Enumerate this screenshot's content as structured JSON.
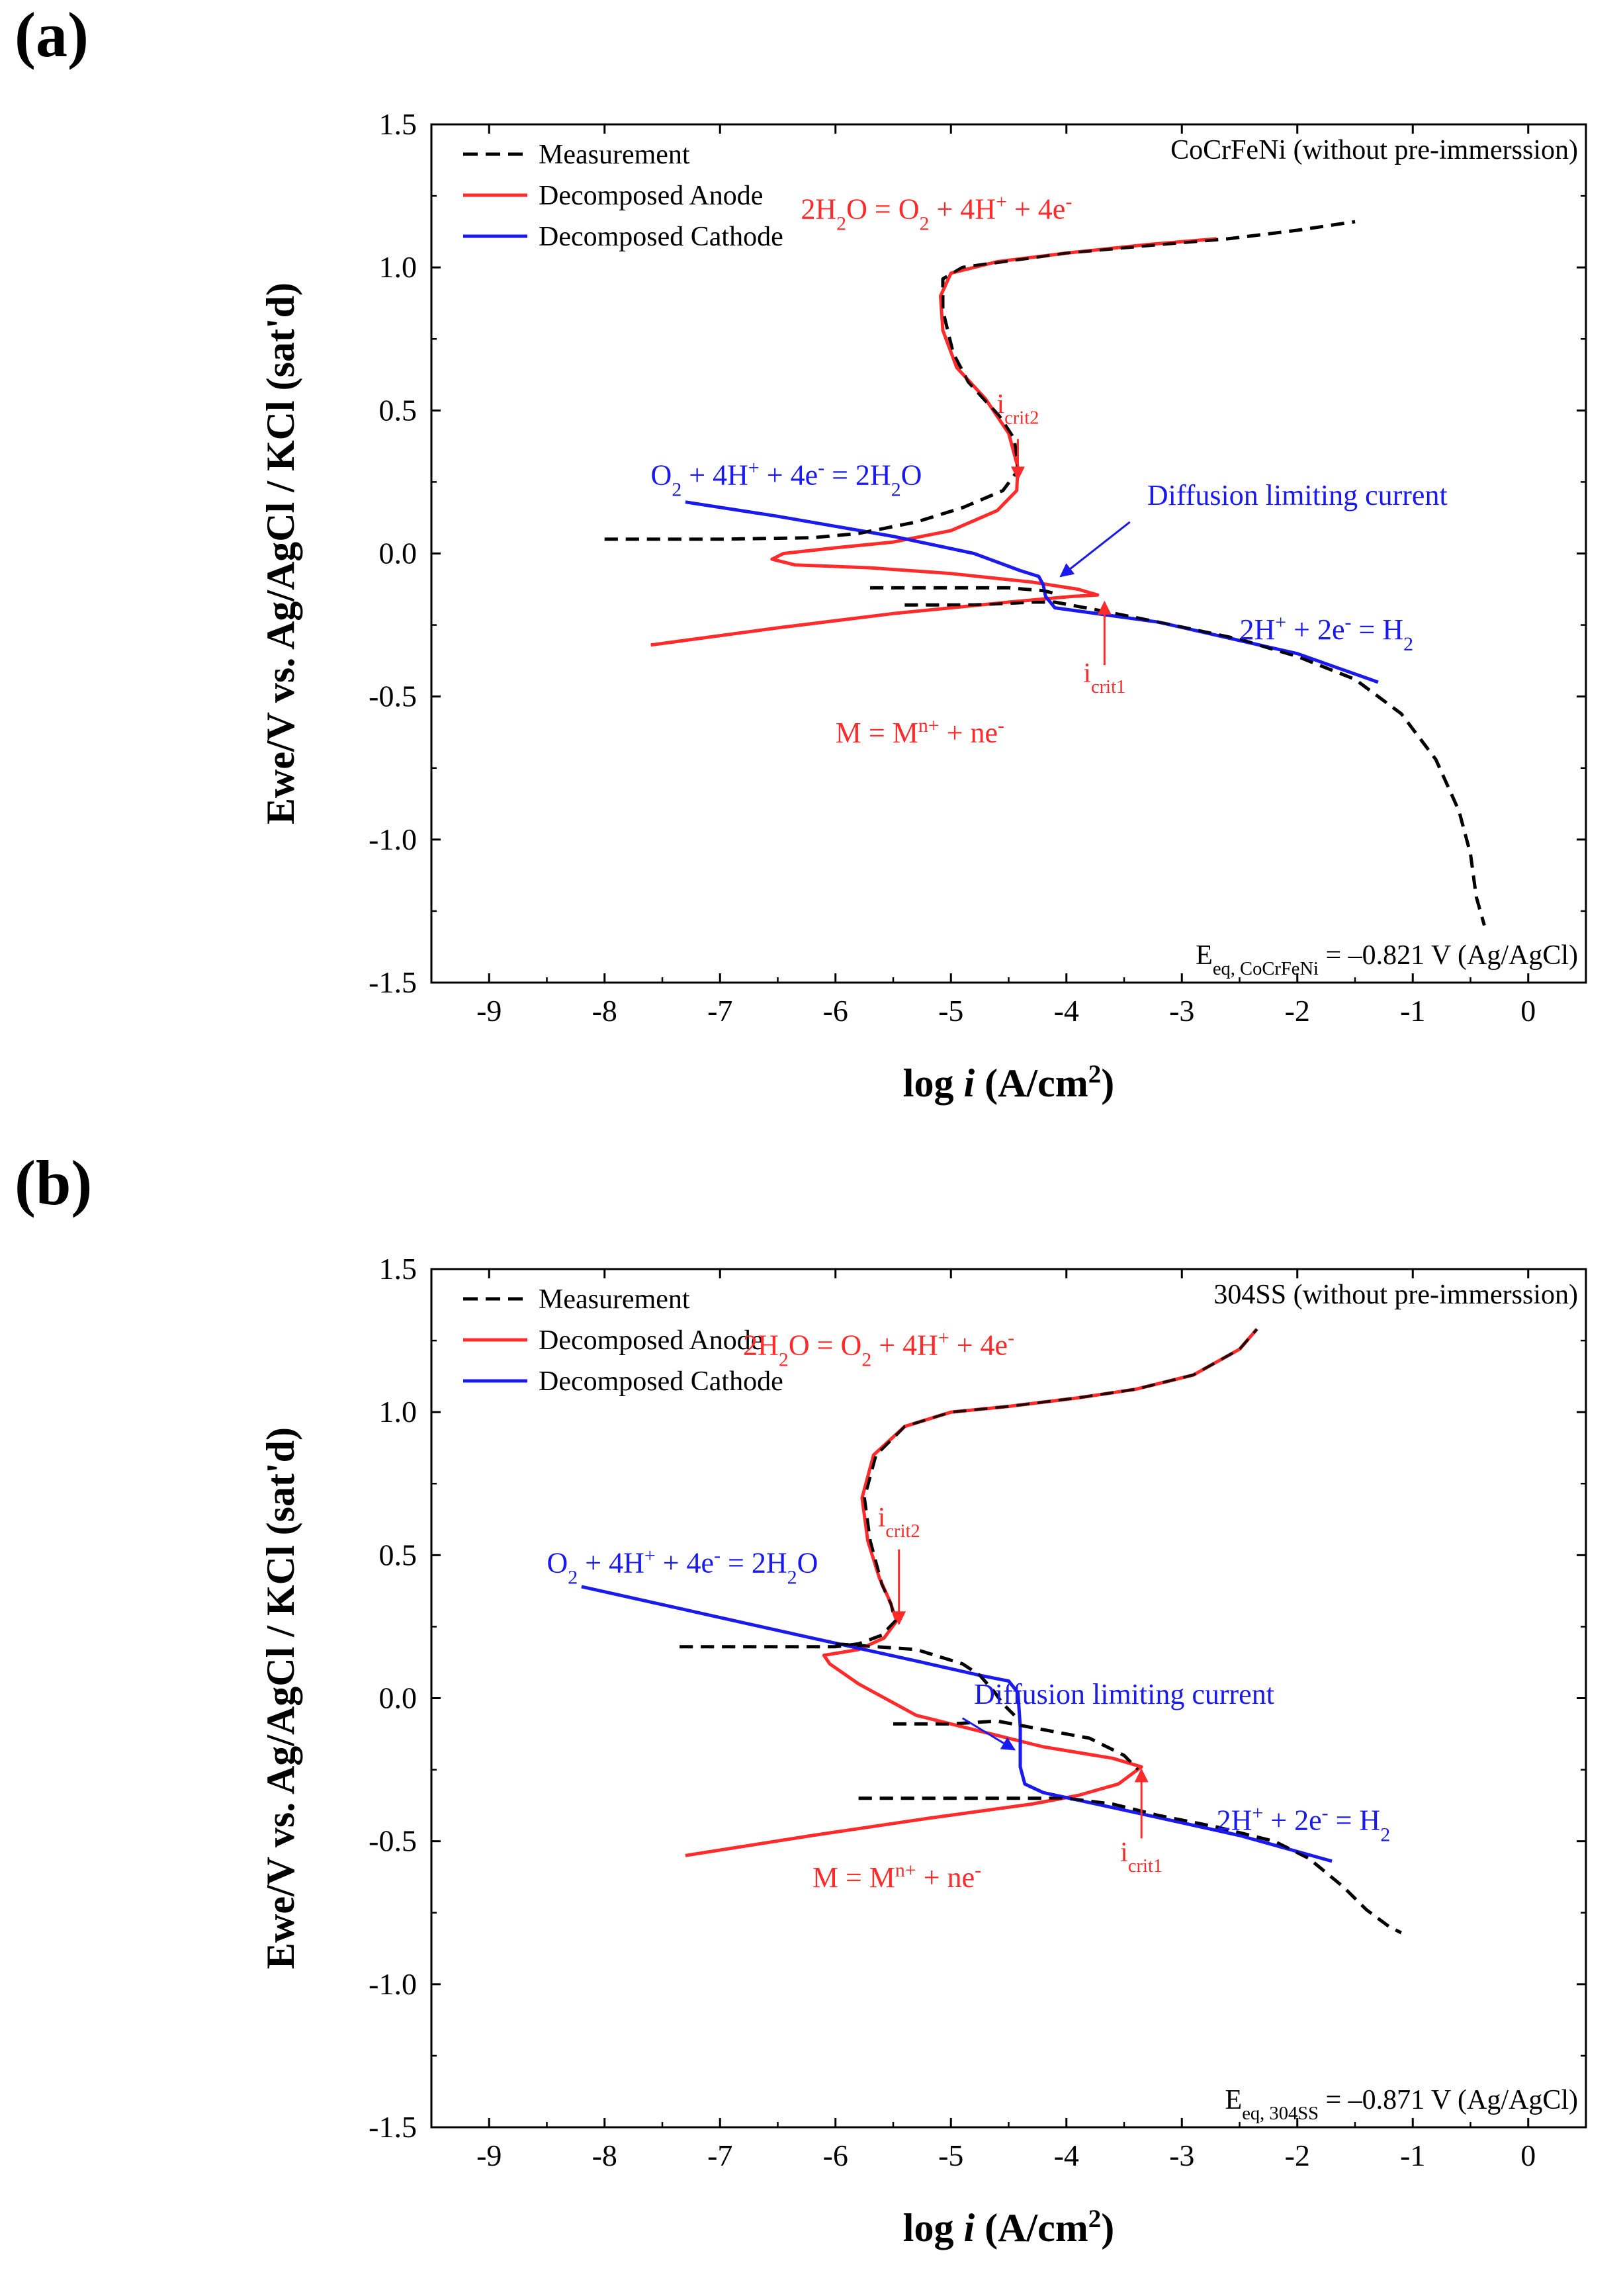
{
  "chart_data": [
    {
      "panel_label": "(a)",
      "type": "line",
      "title": "CoCrFeNi (without pre-immerssion)",
      "xlabel": "log i (A/cm2)",
      "ylabel": "Ewe/V vs. Ag/AgCl / KCl (sat'd)",
      "xlim": [
        -9.5,
        0.5
      ],
      "ylim": [
        -1.5,
        1.5
      ],
      "xticks": [
        -9,
        -8,
        -7,
        -6,
        -5,
        -4,
        -3,
        -2,
        -1,
        0
      ],
      "yticks": [
        -1.5,
        -1.0,
        -0.5,
        0.0,
        0.5,
        1.0,
        1.5
      ],
      "xtick_labels": [
        "-9",
        "-8",
        "-7",
        "-6",
        "-5",
        "-4",
        "-3",
        "-2",
        "-1",
        "0"
      ],
      "ytick_labels": [
        "-1.5",
        "-1.0",
        "-0.5",
        "0.0",
        "0.5",
        "1.0",
        "1.5"
      ],
      "legend": {
        "position": "top-left",
        "entries": [
          {
            "label": "Measurement",
            "color": "#000000",
            "style": "dashed"
          },
          {
            "label": "Decomposed Anode",
            "color": "#ff2a2a",
            "style": "solid"
          },
          {
            "label": "Decomposed Cathode",
            "color": "#1a1aee",
            "style": "solid"
          }
        ]
      },
      "annotations": {
        "oer": "2H2O = O2 + 4H+ + 4e-",
        "orr": "O2 + 4H+ + 4e- = 2H2O",
        "her": "2H+ + 2e- = H2",
        "metal": "M = Mn+ + ne-",
        "diffusion": "Diffusion limiting current",
        "icrit1": "icrit1",
        "icrit2": "icrit2",
        "eq": "Eeq, CoCrFeNi = –0.821 V (Ag/AgCl)"
      },
      "series": [
        {
          "name": "Measurement",
          "points": [
            [
              -8.0,
              0.05
            ],
            [
              -7.0,
              0.05
            ],
            [
              -6.2,
              0.055
            ],
            [
              -5.8,
              0.07
            ],
            [
              -5.3,
              0.11
            ],
            [
              -4.9,
              0.16
            ],
            [
              -4.55,
              0.22
            ],
            [
              -4.42,
              0.29
            ],
            [
              -4.45,
              0.4
            ],
            [
              -4.58,
              0.48
            ],
            [
              -4.85,
              0.6
            ],
            [
              -4.98,
              0.7
            ],
            [
              -5.07,
              0.85
            ],
            [
              -5.07,
              0.96
            ],
            [
              -4.9,
              1.0
            ],
            [
              -4.55,
              1.02
            ],
            [
              -4.0,
              1.05
            ],
            [
              -3.2,
              1.08
            ],
            [
              -2.6,
              1.1
            ],
            [
              -2.0,
              1.13
            ],
            [
              -1.5,
              1.16
            ]
          ]
        },
        {
          "name": "Measurement",
          "points": [
            [
              -5.7,
              -0.12
            ],
            [
              -5.0,
              -0.12
            ],
            [
              -4.5,
              -0.12
            ],
            [
              -4.2,
              -0.13
            ],
            [
              -4.1,
              -0.14
            ]
          ]
        },
        {
          "name": "Measurement",
          "points": [
            [
              -5.4,
              -0.18
            ],
            [
              -4.8,
              -0.18
            ],
            [
              -4.3,
              -0.17
            ],
            [
              -4.1,
              -0.17
            ],
            [
              -3.7,
              -0.2
            ],
            [
              -3.2,
              -0.24
            ],
            [
              -2.5,
              -0.3
            ],
            [
              -2.0,
              -0.36
            ],
            [
              -1.5,
              -0.44
            ],
            [
              -1.1,
              -0.56
            ],
            [
              -0.8,
              -0.72
            ],
            [
              -0.6,
              -0.9
            ],
            [
              -0.5,
              -1.05
            ],
            [
              -0.45,
              -1.2
            ],
            [
              -0.38,
              -1.3
            ]
          ]
        },
        {
          "name": "Decomposed Anode",
          "points": [
            [
              -7.6,
              -0.32
            ],
            [
              -6.5,
              -0.26
            ],
            [
              -5.5,
              -0.21
            ],
            [
              -4.5,
              -0.17
            ],
            [
              -3.95,
              -0.15
            ],
            [
              -3.73,
              -0.145
            ],
            [
              -3.9,
              -0.125
            ],
            [
              -4.3,
              -0.1
            ],
            [
              -5.0,
              -0.07
            ],
            [
              -5.7,
              -0.05
            ],
            [
              -6.35,
              -0.04
            ],
            [
              -6.55,
              -0.02
            ],
            [
              -6.45,
              0.0
            ],
            [
              -6.0,
              0.02
            ],
            [
              -5.5,
              0.04
            ],
            [
              -5.0,
              0.08
            ],
            [
              -4.6,
              0.15
            ],
            [
              -4.43,
              0.22
            ],
            [
              -4.42,
              0.3
            ],
            [
              -4.5,
              0.42
            ],
            [
              -4.7,
              0.54
            ],
            [
              -4.95,
              0.65
            ],
            [
              -5.07,
              0.78
            ],
            [
              -5.09,
              0.9
            ],
            [
              -5.0,
              0.98
            ],
            [
              -4.6,
              1.02
            ],
            [
              -4.0,
              1.05
            ],
            [
              -3.3,
              1.08
            ],
            [
              -2.7,
              1.1
            ]
          ]
        },
        {
          "name": "Decomposed Cathode",
          "points": [
            [
              -7.3,
              0.18
            ],
            [
              -6.5,
              0.13
            ],
            [
              -5.5,
              0.06
            ],
            [
              -4.8,
              -0.0
            ],
            [
              -4.4,
              -0.06
            ],
            [
              -4.24,
              -0.08
            ],
            [
              -4.2,
              -0.11
            ],
            [
              -4.18,
              -0.15
            ],
            [
              -4.1,
              -0.19
            ],
            [
              -3.2,
              -0.24
            ],
            [
              -2.0,
              -0.35
            ],
            [
              -1.3,
              -0.45
            ]
          ]
        }
      ]
    },
    {
      "panel_label": "(b)",
      "type": "line",
      "title": "304SS (without pre-immerssion)",
      "xlabel": "log i (A/cm2)",
      "ylabel": "Ewe/V vs. Ag/AgCl / KCl (sat'd)",
      "xlim": [
        -9.5,
        0.5
      ],
      "ylim": [
        -1.5,
        1.5
      ],
      "xticks": [
        -9,
        -8,
        -7,
        -6,
        -5,
        -4,
        -3,
        -2,
        -1,
        0
      ],
      "yticks": [
        -1.5,
        -1.0,
        -0.5,
        0.0,
        0.5,
        1.0,
        1.5
      ],
      "xtick_labels": [
        "-9",
        "-8",
        "-7",
        "-6",
        "-5",
        "-4",
        "-3",
        "-2",
        "-1",
        "0"
      ],
      "ytick_labels": [
        "-1.5",
        "-1.0",
        "-0.5",
        "0.0",
        "0.5",
        "1.0",
        "1.5"
      ],
      "legend": {
        "position": "top-left",
        "entries": [
          {
            "label": "Measurement",
            "color": "#000000",
            "style": "dashed"
          },
          {
            "label": "Decomposed Anode",
            "color": "#ff2a2a",
            "style": "solid"
          },
          {
            "label": "Decomposed Cathode",
            "color": "#1a1aee",
            "style": "solid"
          }
        ]
      },
      "annotations": {
        "oer": "2H2O = O2 + 4H+ + 4e-",
        "orr": "O2 + 4H+ + 4e- = 2H2O",
        "her": "2H+ + 2e- = H2",
        "metal": "M = Mn+ + ne-",
        "diffusion": "Diffusion limiting current",
        "icrit1": "icrit1",
        "icrit2": "icrit2",
        "eq": "Eeq, 304SS = –0.871 V (Ag/AgCl)"
      },
      "series": [
        {
          "name": "Measurement",
          "points": [
            [
              -7.35,
              0.18
            ],
            [
              -6.6,
              0.18
            ],
            [
              -6.0,
              0.18
            ],
            [
              -5.8,
              0.19
            ],
            [
              -5.6,
              0.22
            ],
            [
              -5.48,
              0.27
            ],
            [
              -5.52,
              0.33
            ],
            [
              -5.6,
              0.4
            ],
            [
              -5.7,
              0.55
            ],
            [
              -5.75,
              0.7
            ],
            [
              -5.65,
              0.85
            ],
            [
              -5.4,
              0.95
            ],
            [
              -5.0,
              1.0
            ],
            [
              -4.5,
              1.02
            ],
            [
              -3.9,
              1.05
            ],
            [
              -3.4,
              1.08
            ],
            [
              -2.9,
              1.13
            ],
            [
              -2.5,
              1.22
            ],
            [
              -2.35,
              1.29
            ]
          ]
        },
        {
          "name": "Measurement",
          "points": [
            [
              -6.0,
              0.19
            ],
            [
              -5.3,
              0.17
            ],
            [
              -4.9,
              0.12
            ],
            [
              -4.75,
              0.08
            ],
            [
              -4.62,
              0.02
            ],
            [
              -4.55,
              -0.02
            ],
            [
              -4.45,
              -0.06
            ]
          ]
        },
        {
          "name": "Measurement",
          "points": [
            [
              -5.5,
              -0.09
            ],
            [
              -5.0,
              -0.09
            ],
            [
              -4.6,
              -0.08
            ],
            [
              -4.2,
              -0.11
            ],
            [
              -3.8,
              -0.14
            ],
            [
              -3.5,
              -0.2
            ],
            [
              -3.38,
              -0.25
            ]
          ]
        },
        {
          "name": "Measurement",
          "points": [
            [
              -5.8,
              -0.35
            ],
            [
              -5.0,
              -0.35
            ],
            [
              -4.4,
              -0.35
            ],
            [
              -4.0,
              -0.35
            ],
            [
              -3.6,
              -0.37
            ],
            [
              -3.2,
              -0.41
            ],
            [
              -2.7,
              -0.45
            ],
            [
              -2.2,
              -0.5
            ],
            [
              -1.9,
              -0.56
            ],
            [
              -1.6,
              -0.66
            ],
            [
              -1.4,
              -0.74
            ],
            [
              -1.2,
              -0.8
            ],
            [
              -1.1,
              -0.82
            ]
          ]
        },
        {
          "name": "Decomposed Anode",
          "points": [
            [
              -7.3,
              -0.55
            ],
            [
              -6.2,
              -0.48
            ],
            [
              -5.2,
              -0.42
            ],
            [
              -4.3,
              -0.37
            ],
            [
              -3.9,
              -0.34
            ],
            [
              -3.55,
              -0.3
            ],
            [
              -3.35,
              -0.24
            ],
            [
              -3.6,
              -0.21
            ],
            [
              -4.2,
              -0.17
            ],
            [
              -4.7,
              -0.12
            ],
            [
              -5.3,
              -0.06
            ],
            [
              -5.8,
              0.05
            ],
            [
              -6.05,
              0.12
            ],
            [
              -6.1,
              0.15
            ],
            [
              -5.8,
              0.17
            ],
            [
              -5.58,
              0.21
            ],
            [
              -5.47,
              0.27
            ],
            [
              -5.53,
              0.34
            ],
            [
              -5.62,
              0.42
            ],
            [
              -5.72,
              0.55
            ],
            [
              -5.77,
              0.7
            ],
            [
              -5.67,
              0.85
            ],
            [
              -5.4,
              0.95
            ],
            [
              -5.0,
              1.0
            ],
            [
              -4.5,
              1.02
            ],
            [
              -3.9,
              1.05
            ],
            [
              -3.4,
              1.08
            ],
            [
              -2.9,
              1.13
            ],
            [
              -2.5,
              1.22
            ],
            [
              -2.35,
              1.29
            ]
          ]
        },
        {
          "name": "Decomposed Cathode",
          "points": [
            [
              -8.2,
              0.39
            ],
            [
              -7.2,
              0.3
            ],
            [
              -6.2,
              0.21
            ],
            [
              -5.3,
              0.13
            ],
            [
              -4.75,
              0.08
            ],
            [
              -4.5,
              0.06
            ],
            [
              -4.42,
              0.02
            ],
            [
              -4.4,
              -0.1
            ],
            [
              -4.4,
              -0.24
            ],
            [
              -4.36,
              -0.3
            ],
            [
              -4.2,
              -0.33
            ],
            [
              -3.4,
              -0.4
            ],
            [
              -2.5,
              -0.48
            ],
            [
              -1.7,
              -0.57
            ]
          ]
        }
      ]
    }
  ]
}
